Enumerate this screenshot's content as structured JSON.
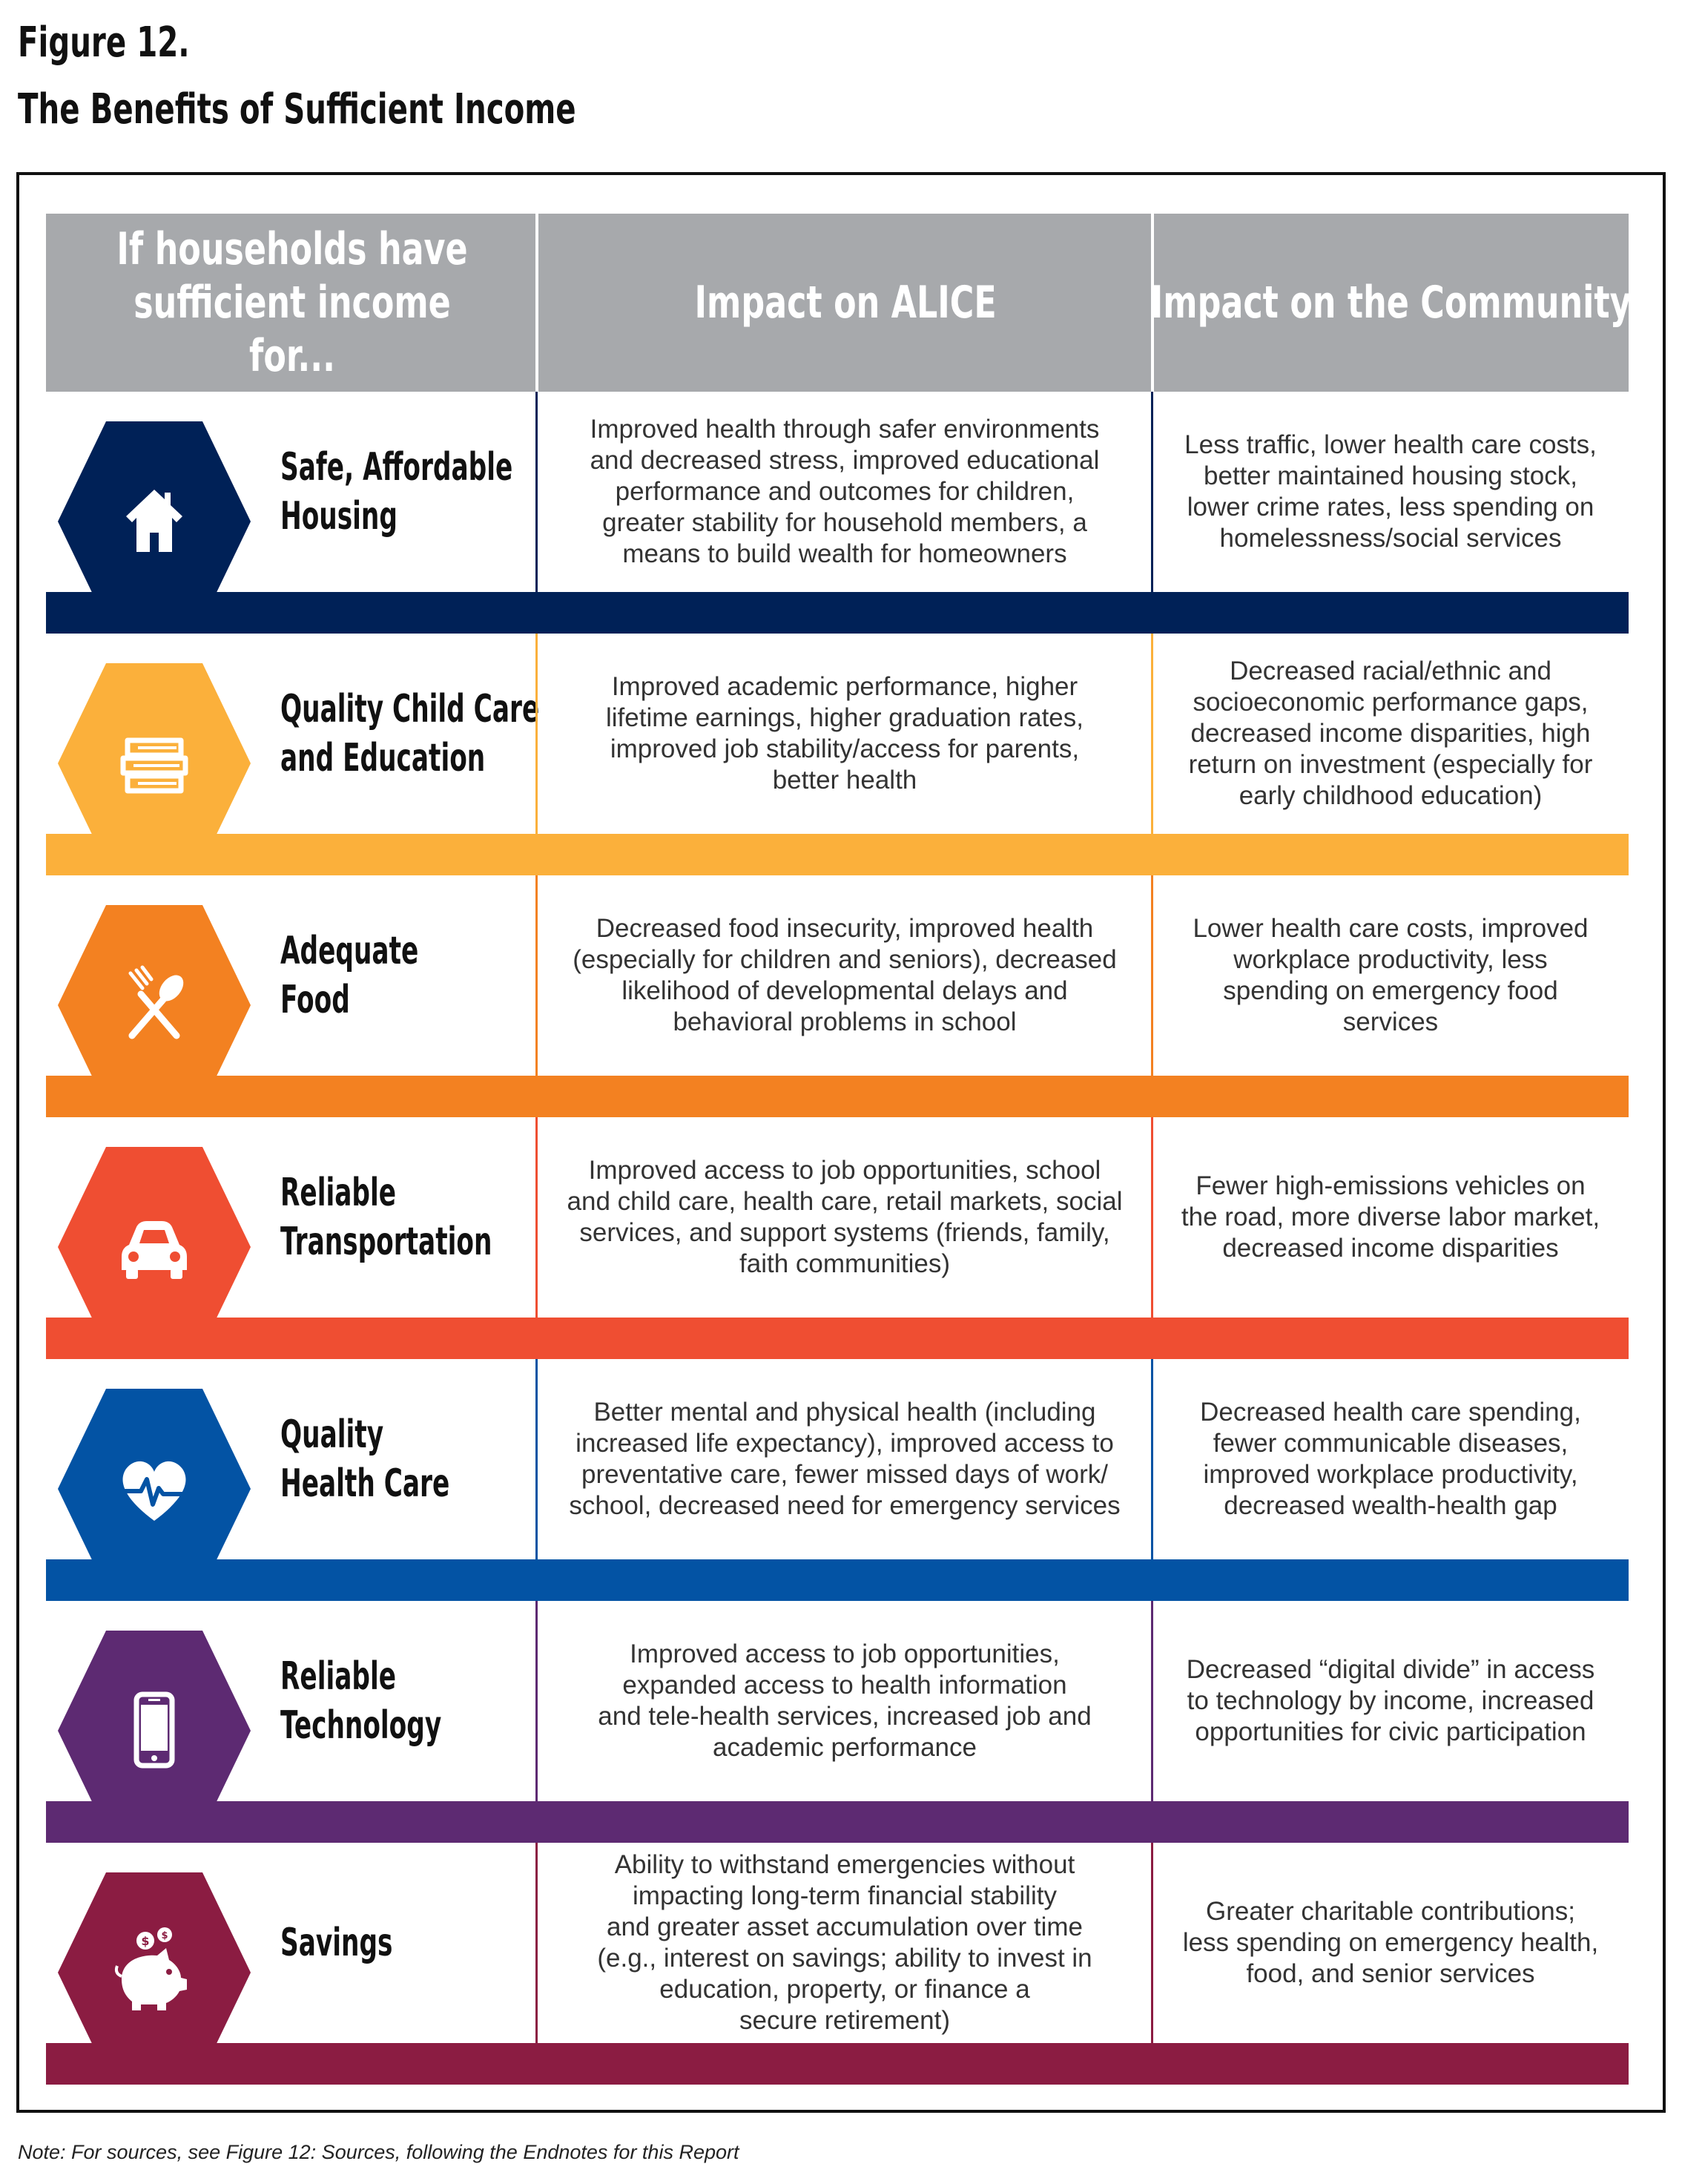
{
  "figure": {
    "label": "Figure 12.",
    "title": "The Benefits of Sufficient Income"
  },
  "header": {
    "col1": "If households have\nsufficient income for...",
    "col2": "Impact on ALICE",
    "col3": "Impact on the Community"
  },
  "rows": [
    {
      "label": "Safe, Affordable\nHousing",
      "icon": "house-icon",
      "color": "#002157",
      "alice": "Improved health through safer environments\nand decreased stress, improved educational\nperformance and outcomes for children,\ngreater stability for household members, a\nmeans to build wealth for homeowners",
      "community": "Less traffic, lower health care costs,\nbetter maintained housing stock,\nlower crime rates, less spending on\nhomelessness/social services"
    },
    {
      "label": "Quality Child Care\nand Education",
      "icon": "books-icon",
      "color": "#fbb03b",
      "alice": "Improved academic performance, higher\nlifetime earnings, higher graduation rates,\nimproved job stability/access for parents,\nbetter health",
      "community": "Decreased racial/ethnic and\nsocioeconomic performance gaps,\ndecreased income disparities, high\nreturn on investment (especially for\nearly childhood education)"
    },
    {
      "label": "Adequate\nFood",
      "icon": "fork-spoon-icon",
      "color": "#f38121",
      "alice": "Decreased food insecurity, improved health\n(especially for children and seniors), decreased\nlikelihood of developmental delays and\nbehavioral problems in school",
      "community": "Lower health care costs, improved\nworkplace productivity, less\nspending on emergency food\nservices"
    },
    {
      "label": "Reliable\nTransportation",
      "icon": "car-icon",
      "color": "#ef4e32",
      "alice": "Improved access to job opportunities, school\nand child care, health care, retail markets, social\nservices, and support systems (friends, family,\nfaith communities)",
      "community": "Fewer high-emissions vehicles on\nthe road, more diverse labor market,\ndecreased income disparities"
    },
    {
      "label": "Quality\nHealth Care",
      "icon": "heart-pulse-icon",
      "color": "#0353a4",
      "alice": "Better mental and physical health (including\nincreased life expectancy), improved access to\npreventative care, fewer missed days of work/\nschool, decreased need for emergency services",
      "community": "Decreased health care spending,\nfewer communicable diseases,\nimproved workplace productivity,\ndecreased wealth-health gap"
    },
    {
      "label": "Reliable\nTechnology",
      "icon": "smartphone-icon",
      "color": "#5d2a72",
      "alice": "Improved access to job opportunities,\nexpanded access to health information\nand tele-health services, increased job and\nacademic performance",
      "community": "Decreased “digital divide” in access\nto technology by income, increased\nopportunities for civic participation"
    },
    {
      "label": "Savings",
      "icon": "piggy-bank-icon",
      "color": "#8b1c42",
      "alice": "Ability to withstand emergencies without\nimpacting long-term financial stability\nand greater asset accumulation over time\n(e.g., interest on savings; ability to invest in\neducation, property, or finance a\nsecure retirement)",
      "community": "Greater charitable contributions;\nless spending on emergency health,\nfood, and senior services"
    }
  ],
  "note": "Note: For sources, see Figure 12: Sources, following the Endnotes for this Report"
}
